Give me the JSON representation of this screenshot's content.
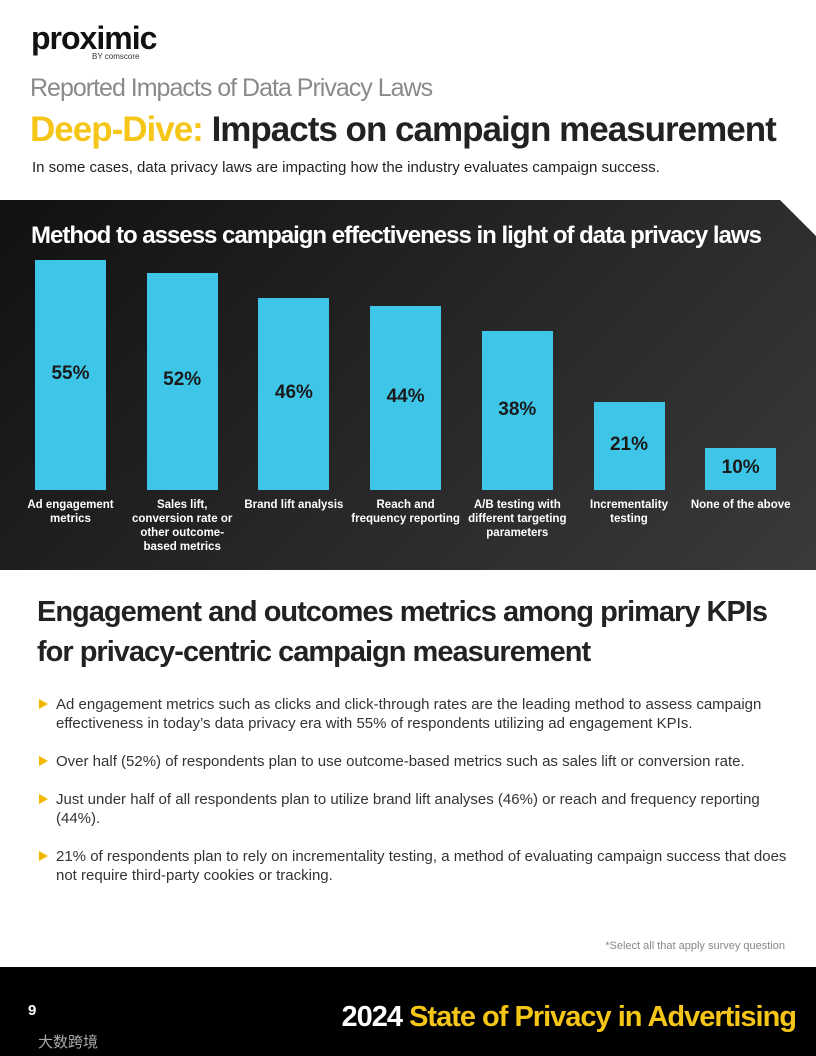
{
  "logo": {
    "name": "proximic",
    "byline": "BY comscore"
  },
  "header": {
    "kicker": "Reported Impacts of Data Privacy Laws",
    "title_highlight": "Deep-Dive:",
    "title": "Impacts on campaign measurement",
    "intro": "In some cases, data privacy laws are impacting how the industry evaluates campaign success."
  },
  "chart_data": {
    "type": "bar",
    "title": "Method to assess campaign effectiveness in light of data privacy laws",
    "categories": [
      "Ad engagement metrics",
      "Sales lift, conversion rate or other outcome-based metrics",
      "Brand lift analysis",
      "Reach and frequency reporting",
      "A/B testing with different targeting parameters",
      "Incrementality testing",
      "None of the above"
    ],
    "values": [
      55,
      52,
      46,
      44,
      38,
      21,
      10
    ],
    "value_labels": [
      "55%",
      "52%",
      "46%",
      "44%",
      "38%",
      "21%",
      "10%"
    ],
    "color": "#3ec6e8"
  },
  "section": {
    "title": "Engagement and outcomes metrics among primary KPIs for privacy-centric campaign measurement",
    "bullets": [
      "Ad engagement metrics such as clicks and click-through rates are the leading method to assess campaign effectiveness in today’s data privacy era with 55% of respondents utilizing ad engagement KPIs.",
      "Over half (52%) of respondents plan to use outcome-based metrics such as sales lift or conversion rate.",
      "Just under half of all respondents plan to utilize brand lift analyses (46%) or reach and frequency reporting (44%).",
      "21% of respondents plan to rely on incrementality testing, a method of evaluating campaign success that does not require third-party cookies or tracking."
    ],
    "note": "*Select all that apply survey question"
  },
  "footer": {
    "page": "9",
    "year": "2024",
    "title": "State of Privacy in Advertising",
    "watermark": "大数跨境"
  }
}
